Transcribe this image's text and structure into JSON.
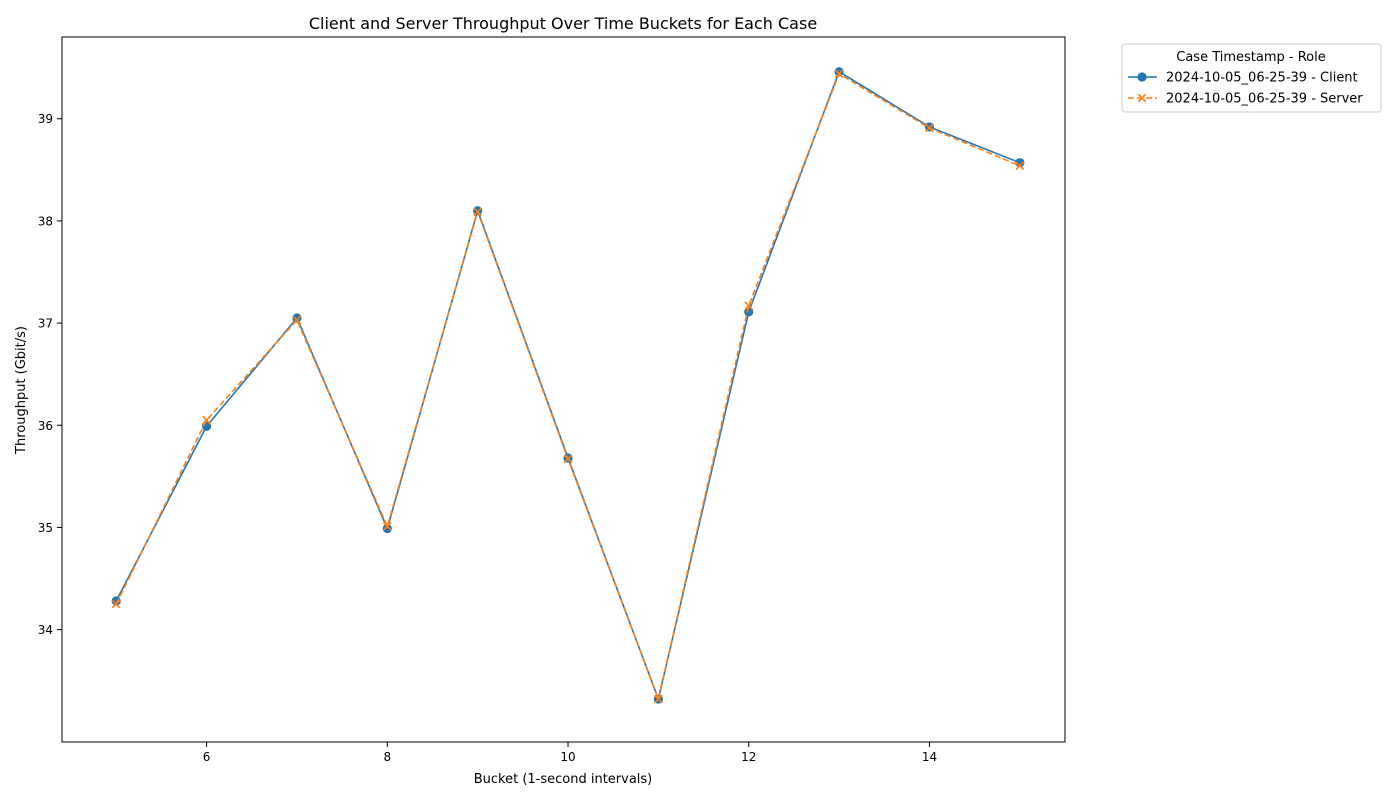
{
  "chart_data": {
    "type": "line",
    "title": "Client and Server Throughput Over Time Buckets for Each Case",
    "xlabel": "Bucket (1-second intervals)",
    "ylabel": "Throughput (Gbit/s)",
    "xlim": [
      4.4,
      15.5
    ],
    "ylim": [
      32.9,
      39.8
    ],
    "xticks": [
      6,
      8,
      10,
      12,
      14
    ],
    "yticks": [
      34,
      35,
      36,
      37,
      38,
      39
    ],
    "grid": false,
    "legend": {
      "title": "Case Timestamp - Role",
      "placement": "outside-top-right"
    },
    "x": [
      5,
      6,
      7,
      8,
      9,
      10,
      11,
      12,
      13,
      14,
      15
    ],
    "series": [
      {
        "name": "2024-10-05_06-25-39 - Client",
        "color": "#1f77b4",
        "marker": "circle",
        "linestyle": "solid",
        "values": [
          34.28,
          35.99,
          37.05,
          34.99,
          38.1,
          35.68,
          33.32,
          37.11,
          39.46,
          38.92,
          38.57
        ]
      },
      {
        "name": "2024-10-05_06-25-39 - Server",
        "color": "#ff7f0e",
        "marker": "x",
        "linestyle": "dashed",
        "values": [
          34.25,
          36.05,
          37.03,
          35.01,
          38.09,
          35.67,
          33.32,
          37.17,
          39.44,
          38.91,
          38.54
        ]
      }
    ]
  }
}
